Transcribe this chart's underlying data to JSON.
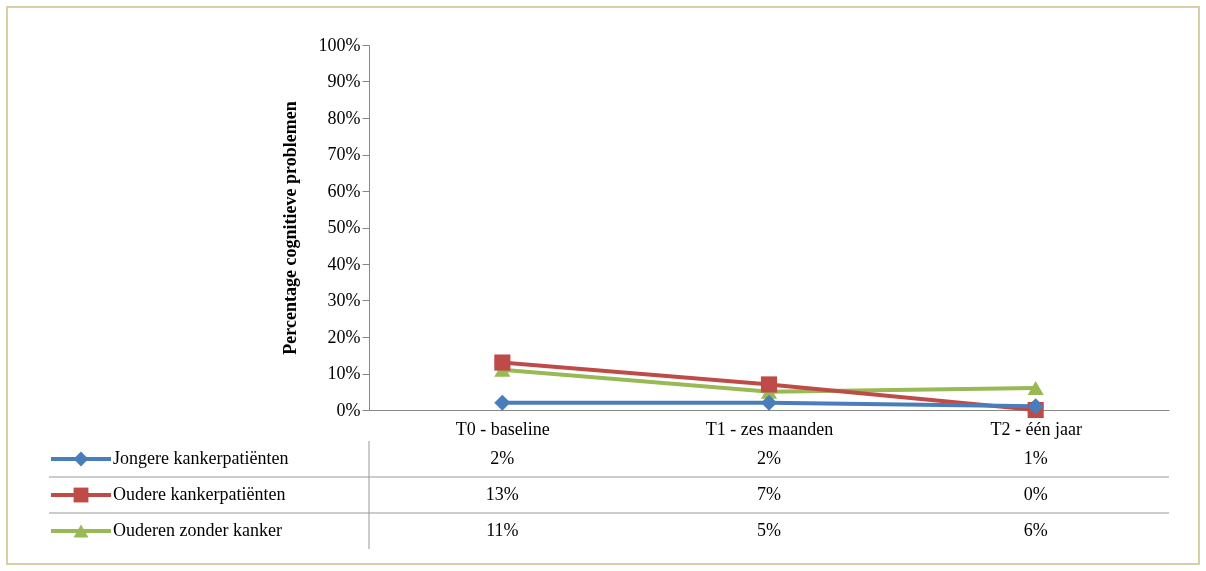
{
  "chart_data": {
    "type": "line",
    "ylabel": "Percentage cognitieve problemen",
    "categories": [
      "T0 - baseline",
      "T1 - zes maanden",
      "T2 - één jaar"
    ],
    "series": [
      {
        "name": "Jongere kankerpatiënten",
        "color": "#4a7ebb",
        "marker": "diamond",
        "values": [
          2,
          2,
          1
        ],
        "value_labels": [
          "2%",
          "2%",
          "1%"
        ]
      },
      {
        "name": "Oudere kankerpatiënten",
        "color": "#be4b48",
        "marker": "square",
        "values": [
          13,
          7,
          0
        ],
        "value_labels": [
          "13%",
          "7%",
          "0%"
        ]
      },
      {
        "name": "Ouderen zonder kanker",
        "color": "#98b954",
        "marker": "triangle",
        "values": [
          11,
          5,
          6
        ],
        "value_labels": [
          "11%",
          "5%",
          "6%"
        ]
      }
    ],
    "ylim": [
      0,
      100
    ],
    "yticks": [
      {
        "value": 0,
        "label": "0%"
      },
      {
        "value": 10,
        "label": "10%"
      },
      {
        "value": 20,
        "label": "20%"
      },
      {
        "value": 30,
        "label": "30%"
      },
      {
        "value": 40,
        "label": "40%"
      },
      {
        "value": 50,
        "label": "50%"
      },
      {
        "value": 60,
        "label": "60%"
      },
      {
        "value": 70,
        "label": "70%"
      },
      {
        "value": 80,
        "label": "80%"
      },
      {
        "value": 90,
        "label": "90%"
      },
      {
        "value": 100,
        "label": "100%"
      }
    ],
    "grid": false,
    "legend": "bottom"
  }
}
